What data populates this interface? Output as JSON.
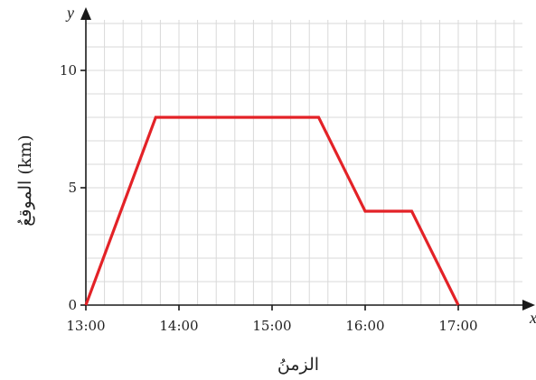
{
  "chart_data": {
    "type": "line",
    "title": "",
    "xlabel": "الزمنُ",
    "ylabel": "الموقعُ (km)",
    "x_axis_name": "x",
    "y_axis_name": "y",
    "x_ticks": [
      "13:00",
      "14:00",
      "15:00",
      "16:00",
      "17:00"
    ],
    "y_ticks": [
      0,
      5,
      10
    ],
    "xlim": [
      "13:00",
      "17:45"
    ],
    "ylim": [
      0,
      12
    ],
    "grid": true,
    "legend": "none",
    "series": [
      {
        "color": "#e32227",
        "points": [
          {
            "x": "13:00",
            "y": 0
          },
          {
            "x": "13:45",
            "y": 8
          },
          {
            "x": "15:30",
            "y": 8
          },
          {
            "x": "16:00",
            "y": 4
          },
          {
            "x": "16:30",
            "y": 4
          },
          {
            "x": "17:00",
            "y": 0
          }
        ]
      }
    ]
  }
}
